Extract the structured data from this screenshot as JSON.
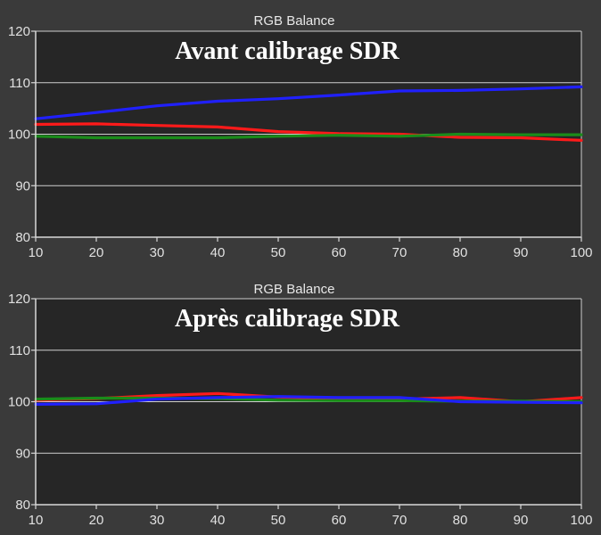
{
  "chart_data": [
    {
      "type": "line",
      "title": "RGB Balance",
      "annotation": "Avant calibrage SDR",
      "x": [
        10,
        20,
        30,
        40,
        50,
        60,
        70,
        80,
        90,
        100
      ],
      "xlim": [
        10,
        100
      ],
      "ylim": [
        80,
        120
      ],
      "x_ticks": [
        "10",
        "20",
        "30",
        "40",
        "50",
        "60",
        "70",
        "80",
        "90",
        "100"
      ],
      "y_ticks": [
        "80",
        "90",
        "100",
        "110",
        "120"
      ],
      "grid": "horizontal",
      "series": [
        {
          "color": "#2020ff",
          "values": [
            103.0,
            104.2,
            105.5,
            106.4,
            106.9,
            107.6,
            108.4,
            108.5,
            108.8,
            109.2
          ]
        },
        {
          "color": "#ff1a1a",
          "values": [
            101.9,
            102.0,
            101.7,
            101.4,
            100.5,
            100.1,
            100.0,
            99.4,
            99.3,
            98.8
          ]
        },
        {
          "color": "#1a8c1a",
          "values": [
            99.6,
            99.3,
            99.3,
            99.3,
            99.6,
            99.8,
            99.6,
            100.0,
            99.9,
            99.9
          ]
        }
      ]
    },
    {
      "type": "line",
      "title": "RGB Balance",
      "annotation": "Après calibrage SDR",
      "x": [
        10,
        20,
        30,
        40,
        50,
        60,
        70,
        80,
        90,
        100
      ],
      "xlim": [
        10,
        100
      ],
      "ylim": [
        80,
        120
      ],
      "x_ticks": [
        "10",
        "20",
        "30",
        "40",
        "50",
        "60",
        "70",
        "80",
        "90",
        "100"
      ],
      "y_ticks": [
        "80",
        "90",
        "100",
        "110",
        "120"
      ],
      "grid": "horizontal",
      "series": [
        {
          "color": "#ff1a1a",
          "values": [
            100.3,
            100.6,
            101.2,
            101.6,
            100.9,
            100.6,
            100.5,
            100.8,
            100.0,
            100.8
          ]
        },
        {
          "color": "#1a8c1a",
          "values": [
            100.5,
            100.7,
            100.7,
            100.6,
            100.3,
            100.2,
            100.2,
            100.1,
            100.1,
            100.0
          ]
        },
        {
          "color": "#2020ff",
          "values": [
            99.5,
            99.6,
            100.5,
            100.8,
            101.0,
            100.8,
            100.8,
            100.0,
            99.9,
            99.8
          ]
        }
      ]
    }
  ]
}
